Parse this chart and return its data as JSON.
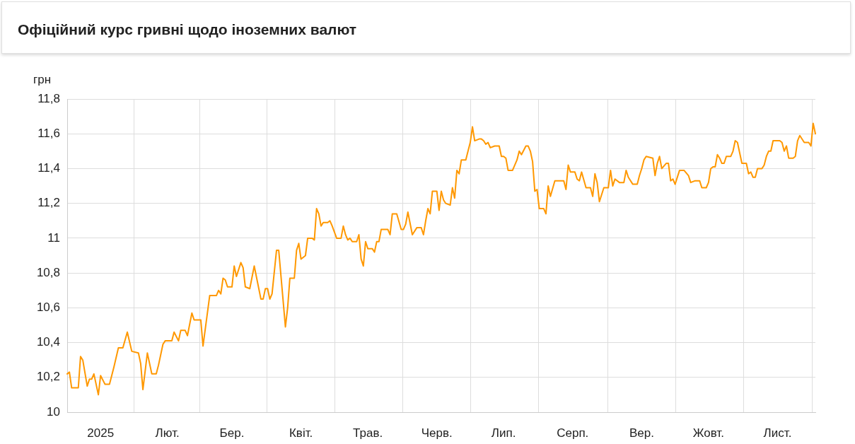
{
  "chart_data": {
    "type": "line",
    "title": "Офіційний курс гривні щодо іноземних валют",
    "ylabel": "грн",
    "categories": [
      null,
      null,
      null,
      null,
      null,
      null,
      null,
      null,
      null,
      null,
      null,
      null,
      null,
      null,
      null,
      "2025",
      null,
      null,
      null,
      null,
      null,
      null,
      null,
      null,
      null,
      null,
      null,
      null,
      null,
      null,
      null,
      null,
      null,
      null,
      null,
      null,
      null,
      null,
      null,
      null,
      null,
      null,
      null,
      null,
      null,
      "Лют.",
      null,
      null,
      null,
      null,
      null,
      null,
      null,
      null,
      null,
      null,
      null,
      null,
      null,
      null,
      null,
      null,
      null,
      null,
      null,
      null,
      null,
      null,
      null,
      null,
      null,
      null,
      null,
      null,
      "Бер.",
      null,
      null,
      null,
      null,
      null,
      null,
      null,
      null,
      null,
      null,
      null,
      null,
      null,
      null,
      null,
      null,
      null,
      null,
      null,
      null,
      null,
      null,
      null,
      null,
      null,
      null,
      null,
      null,
      null,
      null,
      "Квіт.",
      null,
      null,
      null,
      null,
      null,
      null,
      null,
      null,
      null,
      null,
      null,
      null,
      null,
      null,
      null,
      null,
      null,
      null,
      null,
      null,
      null,
      null,
      null,
      null,
      null,
      null,
      null,
      null,
      null,
      "Трав.",
      null,
      null,
      null,
      null,
      null,
      null,
      null,
      null,
      null,
      null,
      null,
      null,
      null,
      null,
      null,
      null,
      null,
      null,
      null,
      null,
      null,
      null,
      null,
      null,
      null,
      null,
      null,
      null,
      null,
      null,
      "Черв.",
      null,
      null,
      null,
      null,
      null,
      null,
      null,
      null,
      null,
      null,
      null,
      null,
      null,
      null,
      null,
      null,
      null,
      null,
      null,
      null,
      null,
      null,
      null,
      null,
      null,
      null,
      null,
      null,
      null,
      "Лип.",
      null,
      null,
      null,
      null,
      null,
      null,
      null,
      null,
      null,
      null,
      null,
      null,
      null,
      null,
      null,
      null,
      null,
      null,
      null,
      null,
      null,
      null,
      null,
      null,
      null,
      null,
      null,
      null,
      null,
      null,
      "Серп.",
      null,
      null,
      null,
      null,
      null,
      null,
      null,
      null,
      null,
      null,
      null,
      null,
      null,
      null,
      null,
      null,
      null,
      null,
      null,
      null,
      null,
      null,
      null,
      null,
      null,
      null,
      null,
      null,
      null,
      null,
      "Вер.",
      null,
      null,
      null,
      null,
      null,
      null,
      null,
      null,
      null,
      null,
      null,
      null,
      null,
      null,
      null,
      null,
      null,
      null,
      null,
      null,
      null,
      null,
      null,
      null,
      null,
      null,
      null,
      null,
      null,
      "Жовт.",
      null,
      null,
      null,
      null,
      null,
      null,
      null,
      null,
      null,
      null,
      null,
      null,
      null,
      null,
      null,
      null,
      null,
      null,
      null,
      null,
      null,
      null,
      null,
      null,
      null,
      null,
      null,
      null,
      null,
      null,
      "Лист.",
      null,
      null,
      null,
      null,
      null,
      null,
      null,
      null,
      null,
      null,
      null,
      null,
      null,
      null,
      null,
      null,
      null
    ],
    "series": [
      {
        "color": "#ff9800",
        "values": [
          10.22,
          10.23,
          10.14,
          null,
          null,
          10.14,
          10.32,
          10.3,
          null,
          10.15,
          10.19,
          10.19,
          10.22,
          null,
          10.1,
          10.21,
          null,
          10.16,
          null,
          10.16,
          null,
          10.26,
          null,
          10.37,
          null,
          10.37,
          null,
          10.46,
          null,
          10.35,
          null,
          null,
          10.34,
          10.28,
          10.13,
          null,
          10.34,
          null,
          10.22,
          null,
          10.22,
          10.27,
          null,
          10.39,
          10.41,
          null,
          null,
          10.41,
          10.46,
          null,
          10.41,
          10.47,
          null,
          10.47,
          10.44,
          null,
          10.57,
          10.53,
          null,
          null,
          10.53,
          10.38,
          null,
          null,
          10.67,
          null,
          null,
          10.67,
          10.7,
          10.68,
          10.77,
          10.76,
          10.72,
          null,
          10.72,
          10.84,
          10.78,
          null,
          10.86,
          10.83,
          10.72,
          null,
          10.71,
          null,
          10.84,
          null,
          null,
          10.65,
          10.65,
          10.71,
          10.71,
          10.65,
          10.68,
          null,
          10.93,
          10.93,
          null,
          null,
          10.49,
          10.6,
          10.77,
          null,
          10.77,
          10.93,
          10.97,
          10.88,
          null,
          10.9,
          11.0,
          null,
          11.0,
          10.99,
          11.17,
          11.14,
          11.07,
          11.09,
          null,
          11.09,
          11.1,
          11.07,
          null,
          11.0,
          null,
          11.0,
          11.07,
          11.02,
          10.99,
          11.0,
          10.98,
          null,
          10.98,
          11.02,
          10.88,
          10.84,
          10.98,
          10.94,
          null,
          10.94,
          10.92,
          10.98,
          10.98,
          11.05,
          null,
          null,
          11.05,
          11.02,
          11.14,
          null,
          11.14,
          null,
          11.05,
          11.05,
          11.08,
          11.15,
          null,
          11.02,
          null,
          11.06,
          null,
          11.06,
          11.02,
          11.1,
          11.17,
          11.14,
          11.27,
          null,
          11.27,
          11.16,
          11.27,
          11.22,
          11.2,
          null,
          11.19,
          11.29,
          11.23,
          11.39,
          11.37,
          11.45,
          null,
          11.45,
          11.5,
          11.55,
          11.64,
          11.56,
          null,
          11.57,
          11.57,
          11.56,
          11.54,
          11.55,
          11.52,
          null,
          11.53,
          null,
          11.53,
          11.47,
          11.47,
          11.46,
          11.39,
          null,
          11.39,
          null,
          11.45,
          11.5,
          11.48,
          null,
          11.53,
          11.53,
          11.5,
          11.44,
          11.27,
          11.28,
          11.17,
          null,
          11.17,
          11.14,
          11.3,
          11.24,
          null,
          11.33,
          null,
          11.33,
          11.33,
          11.33,
          11.28,
          11.42,
          11.38,
          null,
          11.38,
          11.34,
          11.33,
          11.38,
          null,
          11.29,
          null,
          11.29,
          11.24,
          11.37,
          11.32,
          11.21,
          null,
          11.29,
          null,
          11.29,
          11.39,
          11.3,
          11.34,
          null,
          11.32,
          null,
          11.32,
          11.39,
          11.35,
          null,
          11.31,
          null,
          11.31,
          11.36,
          11.4,
          11.45,
          11.47,
          null,
          null,
          11.46,
          11.36,
          11.43,
          11.47,
          11.4,
          null,
          11.43,
          11.43,
          11.33,
          11.34,
          11.31,
          null,
          11.39,
          null,
          11.39,
          null,
          11.36,
          11.32,
          null,
          11.33,
          null,
          11.33,
          11.29,
          null,
          11.29,
          11.32,
          11.4,
          11.41,
          11.41,
          11.48,
          11.46,
          11.43,
          11.43,
          11.47,
          null,
          11.47,
          11.5,
          11.56,
          11.55,
          11.49,
          11.43,
          null,
          11.43,
          11.37,
          11.38,
          11.35,
          11.35,
          11.4,
          null,
          11.4,
          11.42,
          11.47,
          11.5,
          11.5,
          11.56,
          null,
          11.56,
          11.56,
          11.55,
          11.5,
          11.53,
          11.46,
          null,
          11.46,
          11.47,
          11.56,
          11.59,
          null,
          11.55,
          null,
          11.55,
          11.53,
          11.66,
          11.6
        ]
      }
    ],
    "ylim": [
      10,
      11.8
    ],
    "yticks": [
      10,
      {
        "value": 10.2,
        "label": "10,2"
      },
      {
        "value": 10.4,
        "label": "10,4"
      },
      {
        "value": 10.6,
        "label": "10,6"
      },
      {
        "value": 10.8,
        "label": "10,8"
      },
      11,
      {
        "value": 11.2,
        "label": "11,2"
      },
      {
        "value": 11.4,
        "label": "11,4"
      },
      {
        "value": 11.6,
        "label": "11,6"
      },
      {
        "value": 11.8,
        "label": "11,8"
      }
    ],
    "grid": true,
    "legend": false,
    "marker": "none",
    "line_style": "solid"
  }
}
